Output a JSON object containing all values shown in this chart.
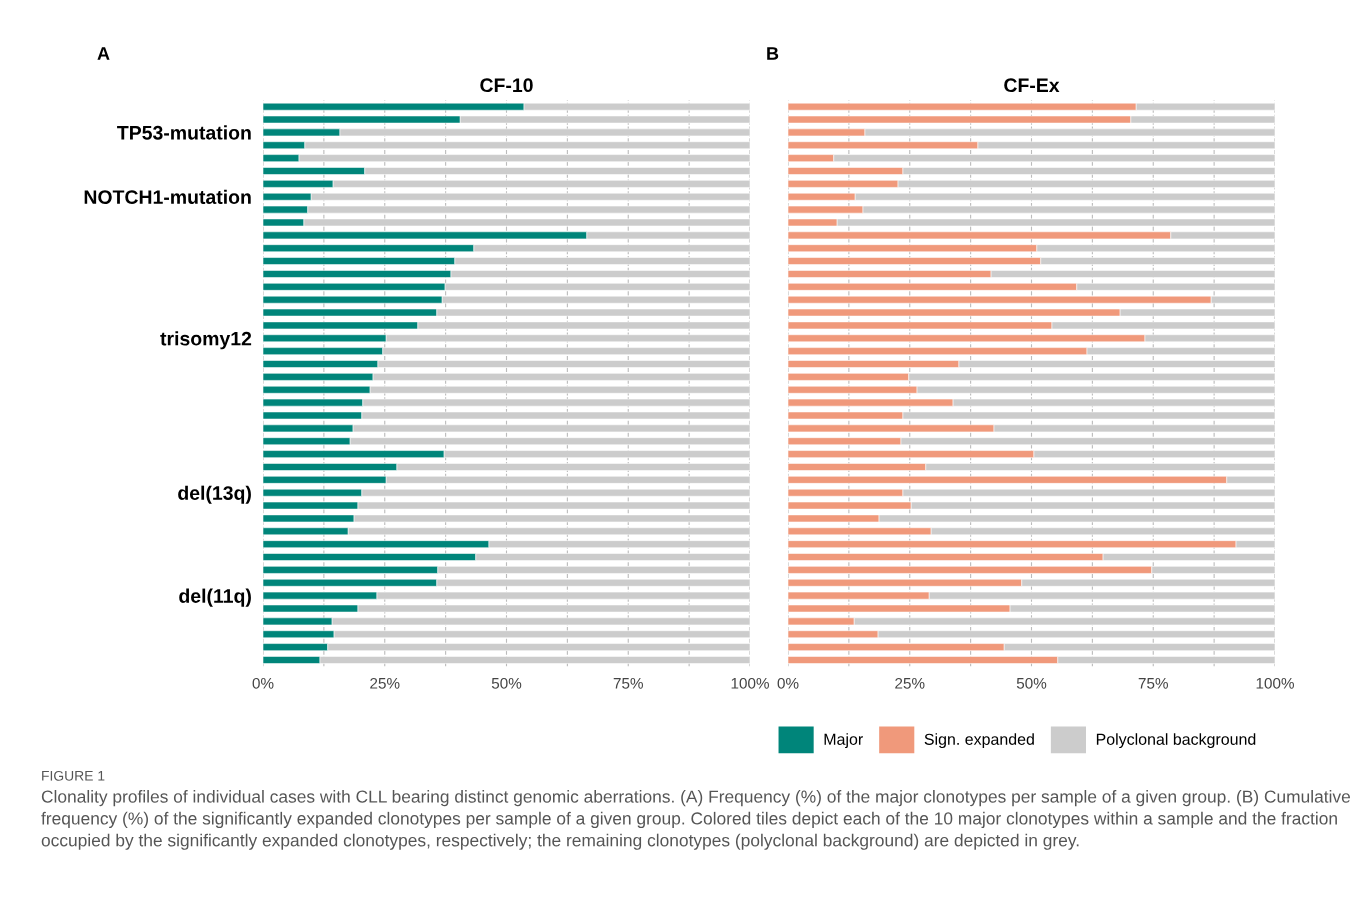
{
  "chart_data": [
    {
      "type": "bar",
      "orientation": "horizontal",
      "stacked": true,
      "title": "CF-10",
      "annotations": [
        "A",
        "FIGURE 1",
        "Clonality profiles of individual cases with CLL bearing distinct genomic aberrations. (A) Frequency (%) of the major clonotypes per sample of a given group. (B) Cumulative frequency (%) of the significantly expanded clonotypes per sample of a given group. Colored tiles depict each of the 10 major clonotypes within a sample and the fraction occupied by the significantly expanded clonotypes, respectively; the remaining clonotypes (polyclonal background) are depicted in grey."
      ],
      "categories": [
        null,
        null,
        "TP53-mutation",
        null,
        null,
        null,
        null,
        "NOTCH1-mutation",
        null,
        null,
        null,
        null,
        null,
        null,
        null,
        null,
        null,
        null,
        "trisomy12",
        null,
        null,
        null,
        null,
        null,
        null,
        null,
        null,
        null,
        null,
        null,
        "del(13q)",
        null,
        null,
        null,
        null,
        null,
        null,
        null,
        "del(11q)",
        null,
        null,
        null,
        null,
        null
      ],
      "series": [
        {
          "name": "Major",
          "color": "#00857a",
          "values": [
            53.6,
            40.5,
            15.8,
            8.6,
            7.4,
            20.9,
            14.4,
            9.9,
            9.2,
            8.4,
            66.5,
            43.3,
            39.4,
            38.6,
            37.4,
            36.8,
            35.7,
            31.8,
            25.3,
            24.6,
            23.6,
            22.6,
            22.0,
            20.5,
            20.3,
            18.5,
            17.9,
            37.2,
            27.5,
            25.3,
            20.3,
            19.5,
            18.7,
            17.5,
            46.4,
            43.7,
            35.9,
            35.7,
            23.4,
            19.5,
            14.2,
            14.6,
            13.3,
            11.7
          ]
        },
        {
          "name": "Polyclonal background",
          "color": "#cccccc",
          "values": [
            46.4,
            59.5,
            84.2,
            91.4,
            92.6,
            79.1,
            85.6,
            90.1,
            90.8,
            91.6,
            33.5,
            56.7,
            60.6,
            61.4,
            62.6,
            63.2,
            64.3,
            68.2,
            74.7,
            75.4,
            76.4,
            77.4,
            78.0,
            79.5,
            79.7,
            81.5,
            82.1,
            62.8,
            72.5,
            74.7,
            79.7,
            80.5,
            81.3,
            82.5,
            53.6,
            56.3,
            64.1,
            64.3,
            76.6,
            80.5,
            85.8,
            85.4,
            86.7,
            88.3
          ]
        }
      ],
      "xlim": [
        0,
        100
      ],
      "xticks": [
        {
          "value": 0,
          "label": "0%"
        },
        {
          "value": 12.5,
          "label": null
        },
        {
          "value": 25,
          "label": "25%"
        },
        {
          "value": 37.5,
          "label": null
        },
        {
          "value": 50,
          "label": "50%"
        },
        {
          "value": 62.5,
          "label": null
        },
        {
          "value": 75,
          "label": "75%"
        },
        {
          "value": 87.5,
          "label": null
        },
        {
          "value": 100,
          "label": "100%"
        }
      ],
      "grid": "x",
      "legend": "bottom"
    },
    {
      "type": "bar",
      "orientation": "horizontal",
      "stacked": true,
      "title": "CF-Ex",
      "annotations": [
        "B"
      ],
      "categories": [
        null,
        null,
        null,
        null,
        null,
        null,
        null,
        null,
        null,
        null,
        null,
        null,
        null,
        null,
        null,
        null,
        null,
        null,
        null,
        null,
        null,
        null,
        null,
        null,
        null,
        null,
        null,
        null,
        null,
        null,
        null,
        null,
        null,
        null,
        null,
        null,
        null,
        null,
        null,
        null,
        null,
        null,
        null,
        null
      ],
      "series": [
        {
          "name": "Sign. expanded",
          "color": "#f0997b",
          "values": [
            71.5,
            70.4,
            15.8,
            39.0,
            9.4,
            23.6,
            22.6,
            13.8,
            15.4,
            10.1,
            78.6,
            51.1,
            51.9,
            41.7,
            59.3,
            86.9,
            68.2,
            54.2,
            73.3,
            61.4,
            35.1,
            24.8,
            26.5,
            33.9,
            23.6,
            42.3,
            23.2,
            50.5,
            28.3,
            90.1,
            23.6,
            25.3,
            18.7,
            29.4,
            92.0,
            64.7,
            74.7,
            48.0,
            29.0,
            45.6,
            13.6,
            18.5,
            44.4,
            55.4
          ]
        },
        {
          "name": "Polyclonal background",
          "color": "#cccccc",
          "values": [
            28.5,
            29.6,
            84.2,
            61.0,
            90.6,
            76.4,
            77.4,
            86.2,
            84.6,
            89.9,
            21.4,
            48.9,
            48.1,
            58.3,
            40.7,
            13.1,
            31.8,
            45.8,
            26.7,
            38.6,
            64.9,
            75.2,
            73.5,
            66.1,
            76.4,
            57.7,
            76.8,
            49.5,
            71.7,
            9.9,
            76.4,
            74.7,
            81.3,
            70.6,
            8.0,
            35.3,
            25.3,
            52.0,
            71.0,
            54.4,
            86.4,
            81.5,
            55.6,
            44.6
          ]
        }
      ],
      "xlim": [
        0,
        100
      ],
      "xticks": [
        {
          "value": 0,
          "label": "0%"
        },
        {
          "value": 12.5,
          "label": null
        },
        {
          "value": 25,
          "label": "25%"
        },
        {
          "value": 37.5,
          "label": null
        },
        {
          "value": 50,
          "label": "50%"
        },
        {
          "value": 62.5,
          "label": null
        },
        {
          "value": 75,
          "label": "75%"
        },
        {
          "value": 87.5,
          "label": null
        },
        {
          "value": 100,
          "label": "100%"
        }
      ],
      "grid": "x",
      "legend": "bottom",
      "tick_labels": "x"
    }
  ]
}
